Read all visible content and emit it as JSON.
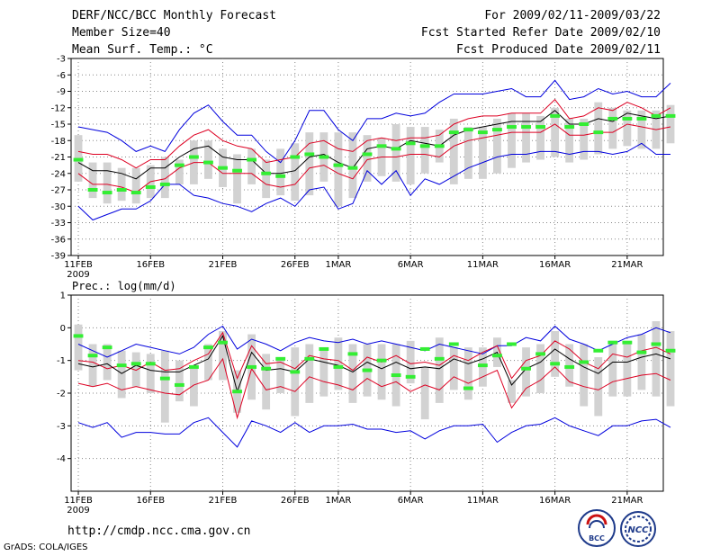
{
  "header": {
    "title": "DERF/NCC/BCC Monthly Forecast",
    "member_size": "Member Size=40",
    "variable": "Mean Surf. Temp.: °C",
    "period": "For 2009/02/11-2009/03/22",
    "started": "Fcst Started Refer Date 2009/02/10",
    "produced": "Fcst Produced Date 2009/02/11"
  },
  "footer": {
    "url": "http://cmdp.ncc.cma.gov.cn",
    "credit": "GrADS: COLA/IGES",
    "logo_bcc": "BCC",
    "logo_ncc": "NCC"
  },
  "colors": {
    "max_line": "#0000dd",
    "spread_line": "#dd0022",
    "mean_line": "#000000",
    "box": "#d2d2d2",
    "median": "#33ee33"
  },
  "chart_data": [
    {
      "type": "box+line",
      "name": "temperature",
      "ylabel": "Mean Surf. Temp.: °C",
      "ylim": [
        -39,
        -3
      ],
      "yticks": [
        -3,
        -6,
        -9,
        -12,
        -15,
        -18,
        -21,
        -24,
        -27,
        -30,
        -33,
        -36,
        -39
      ],
      "xlim": [
        1,
        41
      ],
      "xtick_days": [
        1,
        6,
        11,
        16,
        19,
        24,
        29,
        34,
        39
      ],
      "xtick_labels": [
        "11FEB",
        "16FEB",
        "21FEB",
        "26FEB",
        "1MAR",
        "6MAR",
        "11MAR",
        "16MAR",
        "21MAR"
      ],
      "year_label": "2009",
      "series": [
        {
          "name": "max",
          "values": [
            -15.5,
            -16,
            -16.5,
            -18,
            -20,
            -19,
            -20,
            -16,
            -13,
            -11.5,
            -14.5,
            -17,
            -17,
            -20,
            -22,
            -18,
            -12.5,
            -12.5,
            -16,
            -18,
            -14,
            -14,
            -13,
            -13.5,
            -13,
            -11,
            -9.5,
            -9.5,
            -9.5,
            -9,
            -8.5,
            -10,
            -10,
            -7,
            -10.5,
            -10,
            -8.5,
            -9.5,
            -9,
            -10,
            -10,
            -7.5
          ]
        },
        {
          "name": "upper",
          "values": [
            -20,
            -20.5,
            -20.5,
            -21.5,
            -23,
            -21.5,
            -21.5,
            -19,
            -17,
            -16,
            -18,
            -19,
            -19.5,
            -22,
            -21.5,
            -21,
            -18.5,
            -18,
            -19.5,
            -20,
            -18,
            -17.5,
            -18,
            -17.5,
            -17.5,
            -17,
            -15,
            -14,
            -13.5,
            -13.5,
            -13,
            -13,
            -13,
            -10.5,
            -14,
            -13.5,
            -12,
            -12.5,
            -11,
            -12,
            -13.5,
            -12
          ]
        },
        {
          "name": "mean",
          "values": [
            -22,
            -23.5,
            -23.5,
            -24,
            -25,
            -23,
            -23,
            -21,
            -19.5,
            -19,
            -21,
            -21.5,
            -21.5,
            -24,
            -24,
            -23.5,
            -21,
            -20.5,
            -22,
            -23,
            -19.5,
            -19,
            -19.5,
            -18,
            -18.5,
            -19,
            -17,
            -16,
            -15.5,
            -15,
            -14.5,
            -14.5,
            -14.5,
            -12.5,
            -15,
            -15,
            -14,
            -14.5,
            -13,
            -13.5,
            -14,
            -13.5
          ]
        },
        {
          "name": "lower",
          "values": [
            -24,
            -26,
            -26,
            -26.5,
            -27.5,
            -25.5,
            -25,
            -23,
            -22,
            -22,
            -24,
            -24,
            -24,
            -26,
            -26.5,
            -26,
            -23,
            -22.5,
            -24,
            -25,
            -21.5,
            -21,
            -21,
            -20.5,
            -20.5,
            -21,
            -19,
            -18,
            -17.5,
            -17,
            -16.5,
            -16.5,
            -16.5,
            -15,
            -17,
            -17,
            -16.5,
            -16.5,
            -15,
            -15.5,
            -16,
            -15.5
          ]
        },
        {
          "name": "min",
          "values": [
            -30,
            -32.5,
            -31.5,
            -30.5,
            -30.5,
            -29,
            -26,
            -26,
            -28,
            -28.5,
            -29.5,
            -30,
            -31,
            -29.5,
            -28.5,
            -30,
            -27,
            -26.5,
            -30.5,
            -29.5,
            -23.5,
            -26,
            -23.5,
            -28,
            -25,
            -26,
            -24.5,
            -23,
            -22,
            -21,
            -20.5,
            -20.5,
            -20,
            -20,
            -20.5,
            -20,
            -20,
            -20.5,
            -20,
            -18.5,
            -20.5,
            -20.5
          ]
        },
        {
          "name": "box_top",
          "values": [
            -17,
            -22,
            -22,
            -23,
            -23,
            -22.5,
            -21,
            -21.5,
            -18,
            -18,
            -19.5,
            -20.5,
            -19.5,
            -21.5,
            -19.5,
            -18.5,
            -16.5,
            -16.5,
            -16.5,
            -16.5,
            -17,
            -17.5,
            -15,
            -15.5,
            -15.5,
            -16,
            -14,
            -15.5,
            -15.5,
            -14,
            -13,
            -13,
            -13.5,
            -12,
            -14,
            -14,
            -11,
            -12,
            -12.5,
            -12.5,
            -12.5,
            -11.5
          ]
        },
        {
          "name": "box_bottom",
          "values": [
            -25.5,
            -28.5,
            -29.5,
            -29,
            -29.5,
            -28.5,
            -28.5,
            -26,
            -26,
            -25,
            -26.5,
            -29.5,
            -26,
            -28.5,
            -28,
            -29,
            -28,
            -25.5,
            -30,
            -28.5,
            -25.5,
            -24.5,
            -25.5,
            -26,
            -24,
            -22,
            -26,
            -25,
            -25,
            -24,
            -23,
            -22,
            -21.5,
            -21,
            -22,
            -21.5,
            -20.5,
            -19.5,
            -19,
            -19.5,
            -19.5,
            -18.5
          ]
        },
        {
          "name": "median",
          "values": [
            -21.5,
            -27,
            -27.5,
            -27,
            -27.5,
            -26.5,
            -26,
            -22.5,
            -21,
            -22,
            -23,
            -23.5,
            -21.5,
            -24,
            -24.5,
            -21,
            -20.5,
            -21,
            -22.5,
            -23,
            -20.5,
            -19,
            -19.5,
            -18.5,
            -19,
            -19,
            -16.5,
            -16,
            -16.5,
            -16,
            -15.5,
            -15.5,
            -15.5,
            -13.5,
            -15.5,
            -15,
            -16.5,
            -14,
            -14,
            -14,
            -13.5,
            -13.5
          ]
        }
      ]
    },
    {
      "type": "box+line",
      "name": "precipitation",
      "ylabel": "Prec.: log(mm/d)",
      "ylim": [
        -5,
        1
      ],
      "yticks": [
        1,
        0,
        -1,
        -2,
        -3,
        -4
      ],
      "xlim": [
        1,
        41
      ],
      "xtick_days": [
        1,
        6,
        11,
        16,
        19,
        24,
        29,
        34,
        39
      ],
      "xtick_labels": [
        "11FEB",
        "16FEB",
        "21FEB",
        "26FEB",
        "1MAR",
        "6MAR",
        "11MAR",
        "16MAR",
        "21MAR"
      ],
      "year_label": "2009",
      "series": [
        {
          "name": "max",
          "values": [
            -0.5,
            -0.7,
            -0.9,
            -0.7,
            -0.5,
            -0.6,
            -0.7,
            -0.8,
            -0.6,
            -0.2,
            0.05,
            -0.65,
            -0.35,
            -0.5,
            -0.7,
            -0.45,
            -0.3,
            -0.4,
            -0.45,
            -0.35,
            -0.5,
            -0.4,
            -0.5,
            -0.6,
            -0.7,
            -0.5,
            -0.6,
            -0.7,
            -0.8,
            -0.55,
            -0.55,
            -0.3,
            -0.4,
            0.05,
            -0.35,
            -0.5,
            -0.7,
            -0.5,
            -0.3,
            -0.2,
            0.0,
            -0.15
          ]
        },
        {
          "name": "upper",
          "values": [
            -1.0,
            -1.05,
            -1.25,
            -1.15,
            -1.3,
            -1.05,
            -1.3,
            -1.25,
            -1.0,
            -0.8,
            -0.15,
            -1.55,
            -0.55,
            -1.1,
            -1.05,
            -1.25,
            -0.85,
            -0.95,
            -1.0,
            -1.3,
            -0.9,
            -1.05,
            -0.85,
            -1.1,
            -1.05,
            -1.15,
            -0.85,
            -1.0,
            -0.75,
            -0.55,
            -1.55,
            -1.0,
            -0.85,
            -0.4,
            -0.65,
            -1.05,
            -1.25,
            -0.8,
            -0.9,
            -0.7,
            -0.6,
            -0.8
          ]
        },
        {
          "name": "mean",
          "values": [
            -1.1,
            -1.2,
            -1.1,
            -1.4,
            -1.15,
            -1.3,
            -1.35,
            -1.35,
            -1.15,
            -0.95,
            -0.25,
            -1.95,
            -0.75,
            -1.3,
            -1.25,
            -1.35,
            -0.95,
            -1.05,
            -1.15,
            -1.35,
            -1.05,
            -1.25,
            -1.05,
            -1.25,
            -1.2,
            -1.25,
            -0.95,
            -1.1,
            -0.95,
            -0.75,
            -1.75,
            -1.25,
            -1.05,
            -0.65,
            -0.95,
            -1.2,
            -1.4,
            -1.05,
            -1.05,
            -0.9,
            -0.8,
            -0.95
          ]
        },
        {
          "name": "lower",
          "values": [
            -1.7,
            -1.8,
            -1.7,
            -1.9,
            -1.8,
            -1.9,
            -2.0,
            -2.05,
            -1.75,
            -1.6,
            -0.95,
            -2.75,
            -1.25,
            -1.9,
            -1.8,
            -1.95,
            -1.5,
            -1.65,
            -1.75,
            -1.9,
            -1.55,
            -1.8,
            -1.65,
            -1.95,
            -1.75,
            -1.9,
            -1.5,
            -1.7,
            -1.5,
            -1.3,
            -2.45,
            -1.85,
            -1.6,
            -1.2,
            -1.65,
            -1.8,
            -1.9,
            -1.65,
            -1.55,
            -1.45,
            -1.4,
            -1.6
          ]
        },
        {
          "name": "min",
          "values": [
            -2.9,
            -3.05,
            -2.9,
            -3.35,
            -3.2,
            -3.2,
            -3.25,
            -3.25,
            -2.9,
            -2.75,
            -3.2,
            -3.65,
            -2.85,
            -3.0,
            -3.2,
            -2.9,
            -3.2,
            -3.0,
            -3.0,
            -2.95,
            -3.1,
            -3.1,
            -3.2,
            -3.15,
            -3.4,
            -3.15,
            -3.0,
            -3.0,
            -2.95,
            -3.5,
            -3.2,
            -3.0,
            -2.95,
            -2.75,
            -3.0,
            -3.15,
            -3.3,
            -3.0,
            -3.0,
            -2.85,
            -2.8,
            -3.05
          ]
        },
        {
          "name": "box_top",
          "values": [
            0.1,
            -0.5,
            -0.5,
            -0.7,
            -0.75,
            -0.8,
            -0.7,
            -1.0,
            -1.2,
            -0.5,
            -0.1,
            -1.3,
            -0.2,
            -0.8,
            -0.9,
            -0.6,
            -0.5,
            -0.7,
            -0.3,
            -0.5,
            -0.5,
            -0.5,
            -0.5,
            -0.4,
            -1.2,
            -0.3,
            -0.6,
            -0.6,
            -0.6,
            -0.3,
            -1.6,
            -0.6,
            -0.5,
            -0.1,
            -0.5,
            -0.5,
            -0.9,
            -0.4,
            -0.5,
            -0.2,
            0.2,
            -0.1
          ]
        },
        {
          "name": "box_bottom",
          "values": [
            -1.3,
            -1.8,
            -1.6,
            -2.15,
            -1.8,
            -2.0,
            -2.9,
            -2.25,
            -2.4,
            -1.6,
            -1.6,
            -2.6,
            -2.2,
            -2.5,
            -2.0,
            -2.7,
            -2.3,
            -2.1,
            -1.9,
            -2.3,
            -2.1,
            -2.2,
            -2.4,
            -1.7,
            -2.8,
            -2.3,
            -1.9,
            -2.2,
            -1.8,
            -1.2,
            -2.3,
            -2.1,
            -2.0,
            -1.5,
            -1.8,
            -2.4,
            -2.7,
            -2.1,
            -2.1,
            -1.9,
            -2.1,
            -2.4
          ]
        },
        {
          "name": "median",
          "values": [
            -0.25,
            -0.85,
            -0.6,
            -1.15,
            -1.1,
            -1.1,
            -1.55,
            -1.75,
            -1.2,
            -0.6,
            -0.45,
            -1.95,
            -1.2,
            -1.25,
            -0.95,
            -1.35,
            -0.95,
            -0.65,
            -1.2,
            -0.8,
            -1.3,
            -1.0,
            -1.45,
            -1.5,
            -0.65,
            -0.95,
            -0.5,
            -1.85,
            -1.15,
            -0.85,
            -0.5,
            -1.25,
            -0.8,
            -1.1,
            -1.2,
            -1.05,
            -0.7,
            -0.45,
            -0.45,
            -0.75,
            -0.5,
            -0.7
          ]
        }
      ]
    }
  ]
}
